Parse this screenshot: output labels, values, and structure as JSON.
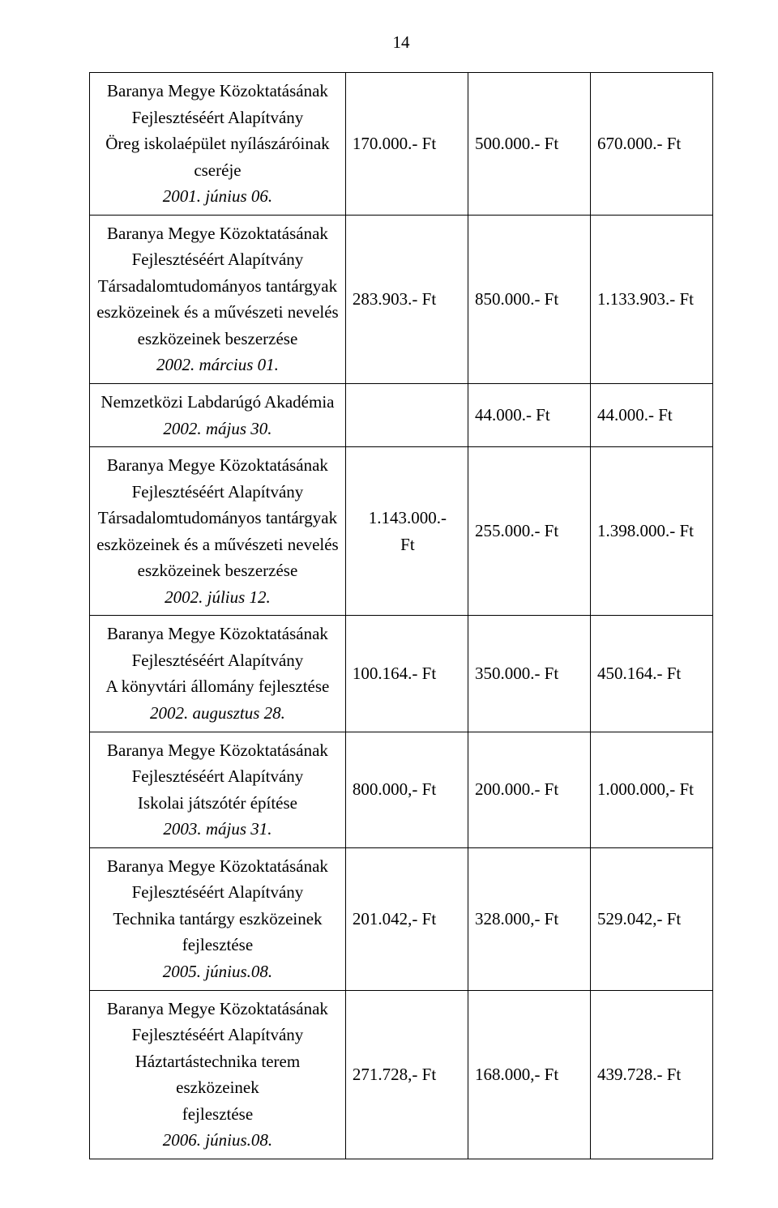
{
  "page_number": "14",
  "rows": [
    {
      "lines": [
        {
          "t": "Baranya Megye Közoktatásának",
          "i": false
        },
        {
          "t": "Fejlesztéséért Alapítvány",
          "i": false
        },
        {
          "t": "Öreg iskolaépület nyílászáróinak",
          "i": false
        },
        {
          "t": "cseréje",
          "i": false
        },
        {
          "t": "2001. június 06.",
          "i": true
        }
      ],
      "c1": "170.000.- Ft",
      "c2": "500.000.- Ft",
      "c3": "670.000.- Ft"
    },
    {
      "lines": [
        {
          "t": "Baranya Megye Közoktatásának",
          "i": false
        },
        {
          "t": "Fejlesztéséért Alapítvány",
          "i": false
        },
        {
          "t": "Társadalomtudományos tantárgyak",
          "i": false
        },
        {
          "t": "eszközeinek és a művészeti nevelés",
          "i": false
        },
        {
          "t": "eszközeinek beszerzése",
          "i": false
        },
        {
          "t": "2002. március 01.",
          "i": true
        }
      ],
      "c1": "283.903.- Ft",
      "c2": "850.000.- Ft",
      "c3": "1.133.903.- Ft"
    },
    {
      "lines": [
        {
          "t": "Nemzetközi Labdarúgó Akadémia",
          "i": false
        },
        {
          "t": "2002. május 30.",
          "i": true
        }
      ],
      "c1": "",
      "c2": "44.000.- Ft",
      "c3": "44.000.- Ft"
    },
    {
      "lines": [
        {
          "t": "Baranya Megye Közoktatásának",
          "i": false
        },
        {
          "t": "Fejlesztéséért Alapítvány",
          "i": false
        },
        {
          "t": "Társadalomtudományos tantárgyak",
          "i": false
        },
        {
          "t": "eszközeinek és a művészeti nevelés",
          "i": false
        },
        {
          "t": "eszközeinek beszerzése",
          "i": false
        },
        {
          "t": "2002. július 12.",
          "i": true
        }
      ],
      "c1_multiline": [
        "1.143.000.-",
        "Ft"
      ],
      "c2": "255.000.- Ft",
      "c3": "1.398.000.- Ft"
    },
    {
      "lines": [
        {
          "t": "Baranya Megye Közoktatásának",
          "i": false
        },
        {
          "t": "Fejlesztéséért Alapítvány",
          "i": false
        },
        {
          "t": "A könyvtári állomány fejlesztése",
          "i": false
        },
        {
          "t": "2002. augusztus 28.",
          "i": true
        }
      ],
      "c1": "100.164.- Ft",
      "c2": "350.000.- Ft",
      "c3": "450.164.- Ft"
    },
    {
      "lines": [
        {
          "t": "Baranya Megye Közoktatásának",
          "i": false
        },
        {
          "t": "Fejlesztéséért Alapítvány",
          "i": false
        },
        {
          "t": "Iskolai játszótér építése",
          "i": false
        },
        {
          "t": "2003. május 31.",
          "i": true
        }
      ],
      "c1": "800.000,- Ft",
      "c2": "200.000.- Ft",
      "c3": "1.000.000,- Ft"
    },
    {
      "lines": [
        {
          "t": "Baranya Megye Közoktatásának",
          "i": false
        },
        {
          "t": "Fejlesztéséért Alapítvány",
          "i": false
        },
        {
          "t": "Technika tantárgy eszközeinek",
          "i": false
        },
        {
          "t": "fejlesztése",
          "i": false
        },
        {
          "t": "2005. június.08.",
          "i": true
        }
      ],
      "c1": "201.042,- Ft",
      "c2": "328.000,- Ft",
      "c3": "529.042,- Ft"
    },
    {
      "lines": [
        {
          "t": "Baranya Megye Közoktatásának",
          "i": false
        },
        {
          "t": "Fejlesztéséért Alapítvány",
          "i": false
        },
        {
          "t": "Háztartástechnika terem eszközeinek",
          "i": false
        },
        {
          "t": "fejlesztése 2006. június.08.",
          "i": false,
          "italicPart": "2006. június.08."
        }
      ],
      "c1": "271.728,- Ft",
      "c2": "168.000,- Ft",
      "c3": "439.728.- Ft"
    }
  ]
}
